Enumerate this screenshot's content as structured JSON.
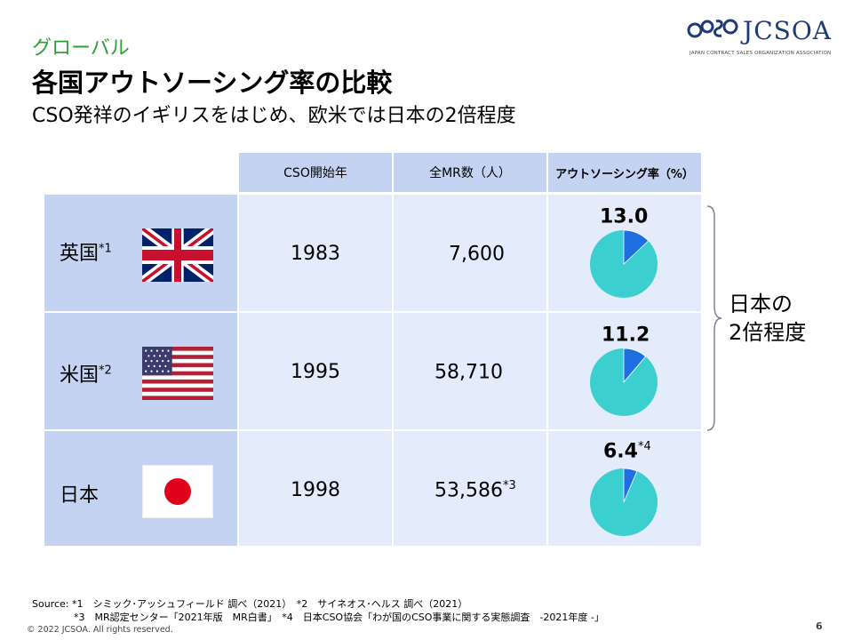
{
  "logo": {
    "name": "JCSOA",
    "subtitle": "JAPAN CONTRACT SALES ORGANIZATION ASSOCIATION"
  },
  "header": {
    "category": "グローバル",
    "title": "各国アウトソーシング率の比較",
    "subtitle": "CSO発祥のイギリスをはじめ、欧米では日本の2倍程度"
  },
  "table": {
    "columns": [
      "CSO開始年",
      "全MR数（人）",
      "アウトソーシング率（%）"
    ],
    "rows": [
      {
        "country": "英国",
        "note": "*1",
        "flag_icon": "uk-flag-icon",
        "start_year": "1983",
        "mr_count": "7,600",
        "mr_note": "",
        "rate": "13.0",
        "rate_note": ""
      },
      {
        "country": "米国",
        "note": "*2",
        "flag_icon": "us-flag-icon",
        "start_year": "1995",
        "mr_count": "58,710",
        "mr_note": "",
        "rate": "11.2",
        "rate_note": ""
      },
      {
        "country": "日本",
        "note": "",
        "flag_icon": "japan-flag-icon",
        "start_year": "1998",
        "mr_count": "53,586",
        "mr_note": "*3",
        "rate": "6.4",
        "rate_note": "*4"
      }
    ]
  },
  "chart_data": {
    "type": "pie",
    "charts": [
      {
        "label": "英国",
        "value": 13.0
      },
      {
        "label": "米国",
        "value": 11.2
      },
      {
        "label": "日本",
        "value": 6.4
      }
    ],
    "colors": {
      "share": "#1f6fe0",
      "rest": "#3ccfcf"
    }
  },
  "annotation": {
    "line1": "日本の",
    "line2": "2倍程度"
  },
  "footer": {
    "source_line1": "Source: *1　シミック･アッシュフィールド 調べ（2021）　*2　サイネオス･ヘルス 調べ（2021）",
    "source_line2": "*3　MR認定センター「2021年版　MR白書」　*4　日本CSO協会「わが国のCSO事業に関する実態調査　-2021年度 -」",
    "copyright": "© 2022 JCSOA.  All rights reserved.",
    "page": "6"
  }
}
